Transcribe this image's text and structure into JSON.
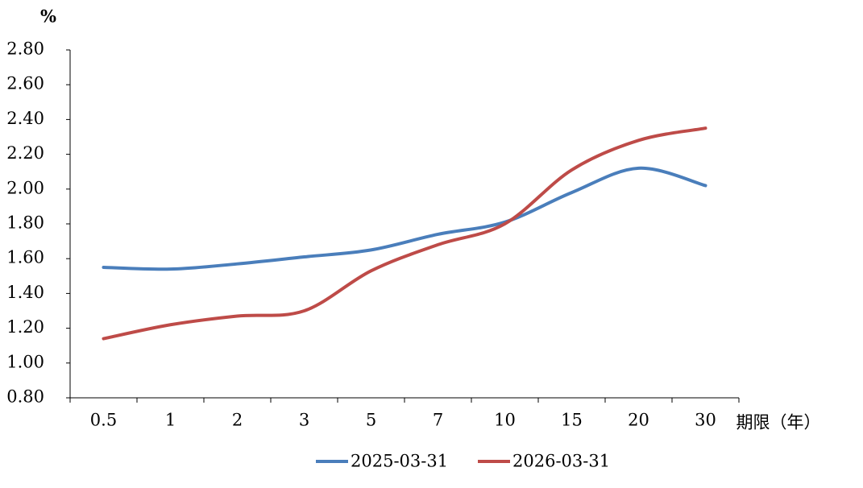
{
  "chart_data": {
    "type": "line",
    "y_label": "%",
    "x_label": "期限（年）",
    "categories": [
      "0.5",
      "1",
      "2",
      "3",
      "5",
      "7",
      "10",
      "15",
      "20",
      "30"
    ],
    "series": [
      {
        "name": "2025-03-31",
        "color": "#4a7ebb",
        "values": [
          1.55,
          1.54,
          1.57,
          1.61,
          1.65,
          1.74,
          1.81,
          1.98,
          2.12,
          2.02
        ]
      },
      {
        "name": "2026-03-31",
        "color": "#be4b48",
        "values": [
          1.14,
          1.22,
          1.27,
          1.3,
          1.53,
          1.68,
          1.8,
          2.11,
          2.28,
          2.35
        ]
      }
    ],
    "ylim": [
      0.8,
      2.8
    ],
    "yticks": [
      {
        "value": 0.8,
        "label": "0.80"
      },
      {
        "value": 1.0,
        "label": "1.00"
      },
      {
        "value": 1.2,
        "label": "1.20"
      },
      {
        "value": 1.4,
        "label": "1.40"
      },
      {
        "value": 1.6,
        "label": "1.60"
      },
      {
        "value": 1.8,
        "label": "1.80"
      },
      {
        "value": 2.0,
        "label": "2.00"
      },
      {
        "value": 2.2,
        "label": "2.20"
      },
      {
        "value": 2.4,
        "label": "2.40"
      },
      {
        "value": 2.6,
        "label": "2.60"
      },
      {
        "value": 2.8,
        "label": "2.80"
      }
    ],
    "grid": false
  }
}
